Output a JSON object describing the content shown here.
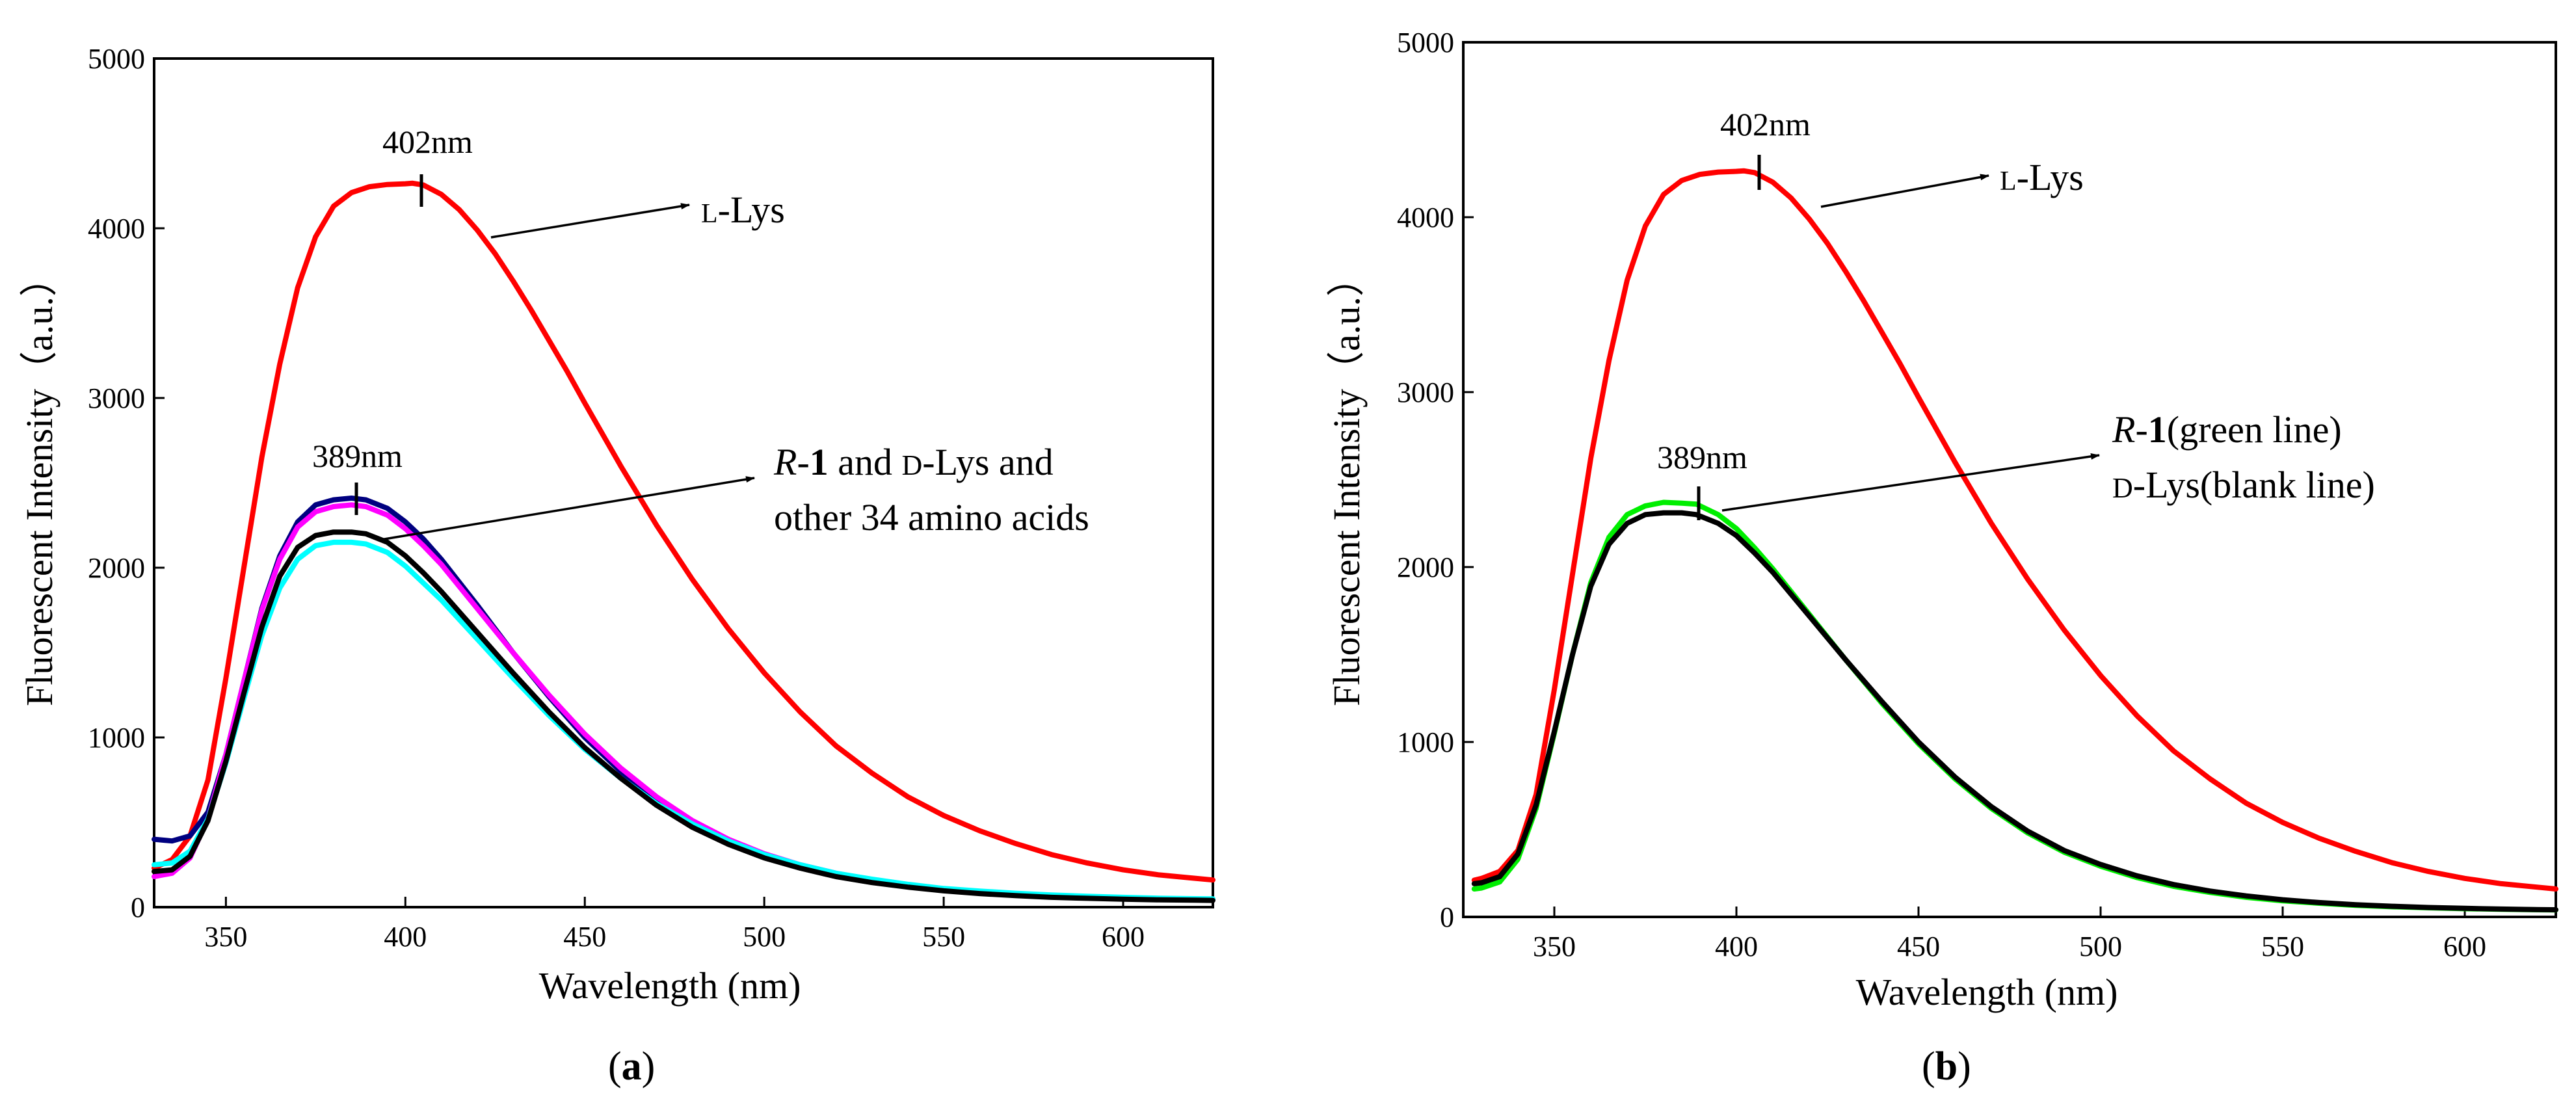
{
  "chart_data": [
    {
      "panel": "a",
      "panel_label_open": "(",
      "panel_label_letter": "a",
      "panel_label_close": ")",
      "type": "line",
      "xlabel": "Wavelength (nm)",
      "ylabel": "Fluorescent Intensity（a.u.）",
      "xlim": [
        330,
        625
      ],
      "ylim": [
        0,
        5000
      ],
      "xticks": [
        350,
        400,
        450,
        500,
        550,
        600
      ],
      "yticks": [
        0,
        1000,
        2000,
        3000,
        4000,
        5000
      ],
      "grid": false,
      "series": [
        {
          "color": "#ff0000",
          "x": [
            330,
            335,
            340,
            345,
            350,
            355,
            360,
            365,
            370,
            375,
            380,
            385,
            390,
            395,
            400,
            402,
            405,
            410,
            415,
            420,
            425,
            430,
            435,
            440,
            445,
            450,
            460,
            470,
            480,
            490,
            500,
            510,
            520,
            530,
            540,
            550,
            560,
            570,
            580,
            590,
            600,
            610,
            620,
            625
          ],
          "y": [
            230,
            280,
            420,
            750,
            1350,
            2000,
            2650,
            3200,
            3650,
            3950,
            4130,
            4210,
            4245,
            4258,
            4262,
            4265,
            4255,
            4200,
            4110,
            3990,
            3850,
            3690,
            3520,
            3340,
            3160,
            2970,
            2600,
            2250,
            1930,
            1640,
            1380,
            1150,
            950,
            790,
            650,
            540,
            450,
            375,
            310,
            260,
            220,
            190,
            170,
            160
          ]
        },
        {
          "color": "#000080",
          "x": [
            330,
            335,
            340,
            345,
            350,
            355,
            360,
            365,
            370,
            375,
            380,
            385,
            389,
            395,
            400,
            405,
            410,
            420,
            430,
            440,
            450,
            460,
            470,
            480,
            490,
            500,
            510,
            520,
            530,
            540,
            550,
            560,
            570,
            580,
            590,
            600,
            610,
            620,
            625
          ],
          "y": [
            400,
            390,
            420,
            560,
            900,
            1330,
            1760,
            2070,
            2270,
            2370,
            2400,
            2410,
            2400,
            2350,
            2270,
            2170,
            2050,
            1780,
            1500,
            1240,
            1000,
            800,
            630,
            490,
            380,
            300,
            235,
            185,
            150,
            120,
            100,
            85,
            72,
            62,
            55,
            50,
            46,
            43,
            42
          ]
        },
        {
          "color": "#ff00ff",
          "x": [
            330,
            335,
            340,
            345,
            350,
            355,
            360,
            365,
            370,
            375,
            380,
            385,
            389,
            395,
            400,
            405,
            410,
            420,
            430,
            440,
            450,
            460,
            470,
            480,
            490,
            500,
            510,
            520,
            530,
            540,
            550,
            560,
            570,
            580,
            590,
            600,
            610,
            620,
            625
          ],
          "y": [
            180,
            200,
            290,
            520,
            900,
            1330,
            1750,
            2050,
            2240,
            2330,
            2360,
            2370,
            2360,
            2310,
            2230,
            2130,
            2020,
            1760,
            1500,
            1250,
            1020,
            820,
            650,
            510,
            400,
            315,
            250,
            200,
            160,
            130,
            105,
            88,
            75,
            65,
            58,
            52,
            48,
            45,
            44
          ]
        },
        {
          "color": "#00ffff",
          "x": [
            330,
            335,
            340,
            345,
            350,
            355,
            360,
            365,
            370,
            375,
            380,
            385,
            389,
            395,
            400,
            405,
            410,
            420,
            430,
            440,
            450,
            460,
            470,
            480,
            490,
            500,
            510,
            520,
            530,
            540,
            550,
            560,
            570,
            580,
            590,
            600,
            610,
            620,
            625
          ],
          "y": [
            250,
            260,
            330,
            520,
            850,
            1230,
            1600,
            1880,
            2050,
            2130,
            2150,
            2150,
            2140,
            2090,
            2010,
            1910,
            1810,
            1580,
            1350,
            1130,
            930,
            760,
            610,
            490,
            390,
            310,
            250,
            200,
            165,
            135,
            110,
            95,
            82,
            72,
            64,
            58,
            53,
            50,
            49
          ]
        },
        {
          "color": "#000000",
          "x": [
            330,
            335,
            340,
            345,
            350,
            355,
            360,
            365,
            370,
            375,
            380,
            385,
            389,
            395,
            400,
            405,
            410,
            420,
            430,
            440,
            450,
            460,
            470,
            480,
            490,
            500,
            510,
            520,
            530,
            540,
            550,
            560,
            570,
            580,
            590,
            600,
            610,
            620,
            625
          ],
          "y": [
            210,
            220,
            300,
            510,
            860,
            1260,
            1650,
            1950,
            2120,
            2190,
            2210,
            2210,
            2200,
            2150,
            2070,
            1970,
            1860,
            1620,
            1380,
            1150,
            940,
            760,
            600,
            470,
            370,
            290,
            230,
            180,
            145,
            118,
            96,
            80,
            68,
            58,
            52,
            47,
            43,
            41,
            40
          ]
        }
      ],
      "annotations": [
        {
          "text": "402nm",
          "x": 402,
          "y": 4265
        },
        {
          "text_small": "L",
          "text_rest": "-Lys"
        },
        {
          "text": "389nm",
          "x": 389,
          "y": 2410
        },
        {
          "line1_italic": "R",
          "line1_dash": "-",
          "line1_bold": "1",
          "line1_and": " and ",
          "line1_small": "D",
          "line1_rest": "-Lys and",
          "line2": "other 34 amino acids"
        }
      ]
    },
    {
      "panel": "b",
      "panel_label_open": "(",
      "panel_label_letter": "b",
      "panel_label_close": ")",
      "type": "line",
      "xlabel": "Wavelength (nm)",
      "ylabel": "Fluorescent Intensity（a.u.）",
      "xlim": [
        325,
        625
      ],
      "ylim": [
        0,
        5000
      ],
      "xticks": [
        350,
        400,
        450,
        500,
        550,
        600
      ],
      "yticks": [
        0,
        1000,
        2000,
        3000,
        4000,
        5000
      ],
      "grid": false,
      "series": [
        {
          "color": "#ff0000",
          "x": [
            328,
            330,
            335,
            340,
            345,
            350,
            355,
            360,
            365,
            370,
            375,
            380,
            385,
            390,
            395,
            400,
            402,
            405,
            410,
            415,
            420,
            425,
            430,
            435,
            440,
            445,
            450,
            460,
            470,
            480,
            490,
            500,
            510,
            520,
            530,
            540,
            550,
            560,
            570,
            580,
            590,
            600,
            610,
            620,
            625
          ],
          "y": [
            210,
            220,
            260,
            380,
            700,
            1300,
            1960,
            2620,
            3180,
            3640,
            3950,
            4130,
            4210,
            4245,
            4258,
            4262,
            4265,
            4255,
            4200,
            4110,
            3990,
            3850,
            3690,
            3520,
            3340,
            3160,
            2970,
            2600,
            2250,
            1930,
            1640,
            1380,
            1150,
            950,
            790,
            650,
            540,
            450,
            375,
            310,
            260,
            220,
            190,
            170,
            160
          ]
        },
        {
          "color": "#00ee00",
          "x": [
            328,
            330,
            335,
            340,
            345,
            350,
            355,
            360,
            365,
            370,
            375,
            380,
            385,
            389,
            395,
            400,
            405,
            410,
            420,
            430,
            440,
            450,
            460,
            470,
            480,
            490,
            500,
            510,
            520,
            530,
            540,
            550,
            560,
            570,
            580,
            590,
            600,
            610,
            620,
            625
          ],
          "y": [
            160,
            165,
            200,
            330,
            620,
            1050,
            1500,
            1910,
            2170,
            2300,
            2350,
            2370,
            2365,
            2360,
            2300,
            2220,
            2110,
            1990,
            1730,
            1470,
            1220,
            990,
            790,
            620,
            480,
            370,
            290,
            225,
            175,
            140,
            112,
            92,
            78,
            66,
            58,
            52,
            47,
            44,
            41,
            40
          ]
        },
        {
          "color": "#000000",
          "x": [
            328,
            330,
            335,
            340,
            345,
            350,
            355,
            360,
            365,
            370,
            375,
            380,
            385,
            389,
            395,
            400,
            405,
            410,
            420,
            430,
            440,
            450,
            460,
            470,
            480,
            490,
            500,
            510,
            520,
            530,
            540,
            550,
            560,
            570,
            580,
            590,
            600,
            610,
            620,
            625
          ],
          "y": [
            190,
            195,
            230,
            360,
            640,
            1060,
            1500,
            1890,
            2130,
            2250,
            2300,
            2310,
            2310,
            2300,
            2250,
            2180,
            2080,
            1970,
            1720,
            1470,
            1230,
            1000,
            800,
            630,
            490,
            380,
            300,
            235,
            185,
            148,
            120,
            98,
            82,
            70,
            61,
            54,
            49,
            45,
            42,
            41
          ]
        }
      ],
      "annotations": [
        {
          "text": "402nm",
          "x": 402,
          "y": 4265
        },
        {
          "text_small": "L",
          "text_rest": "-Lys"
        },
        {
          "text": "389nm",
          "x": 389,
          "y": 2360
        },
        {
          "line1_italic": "R",
          "line1_dash": "-",
          "line1_bold": "1",
          "line1_rest": "(green line)",
          "line2_small": "D",
          "line2_rest": "-Lys(blank line)"
        }
      ]
    }
  ]
}
